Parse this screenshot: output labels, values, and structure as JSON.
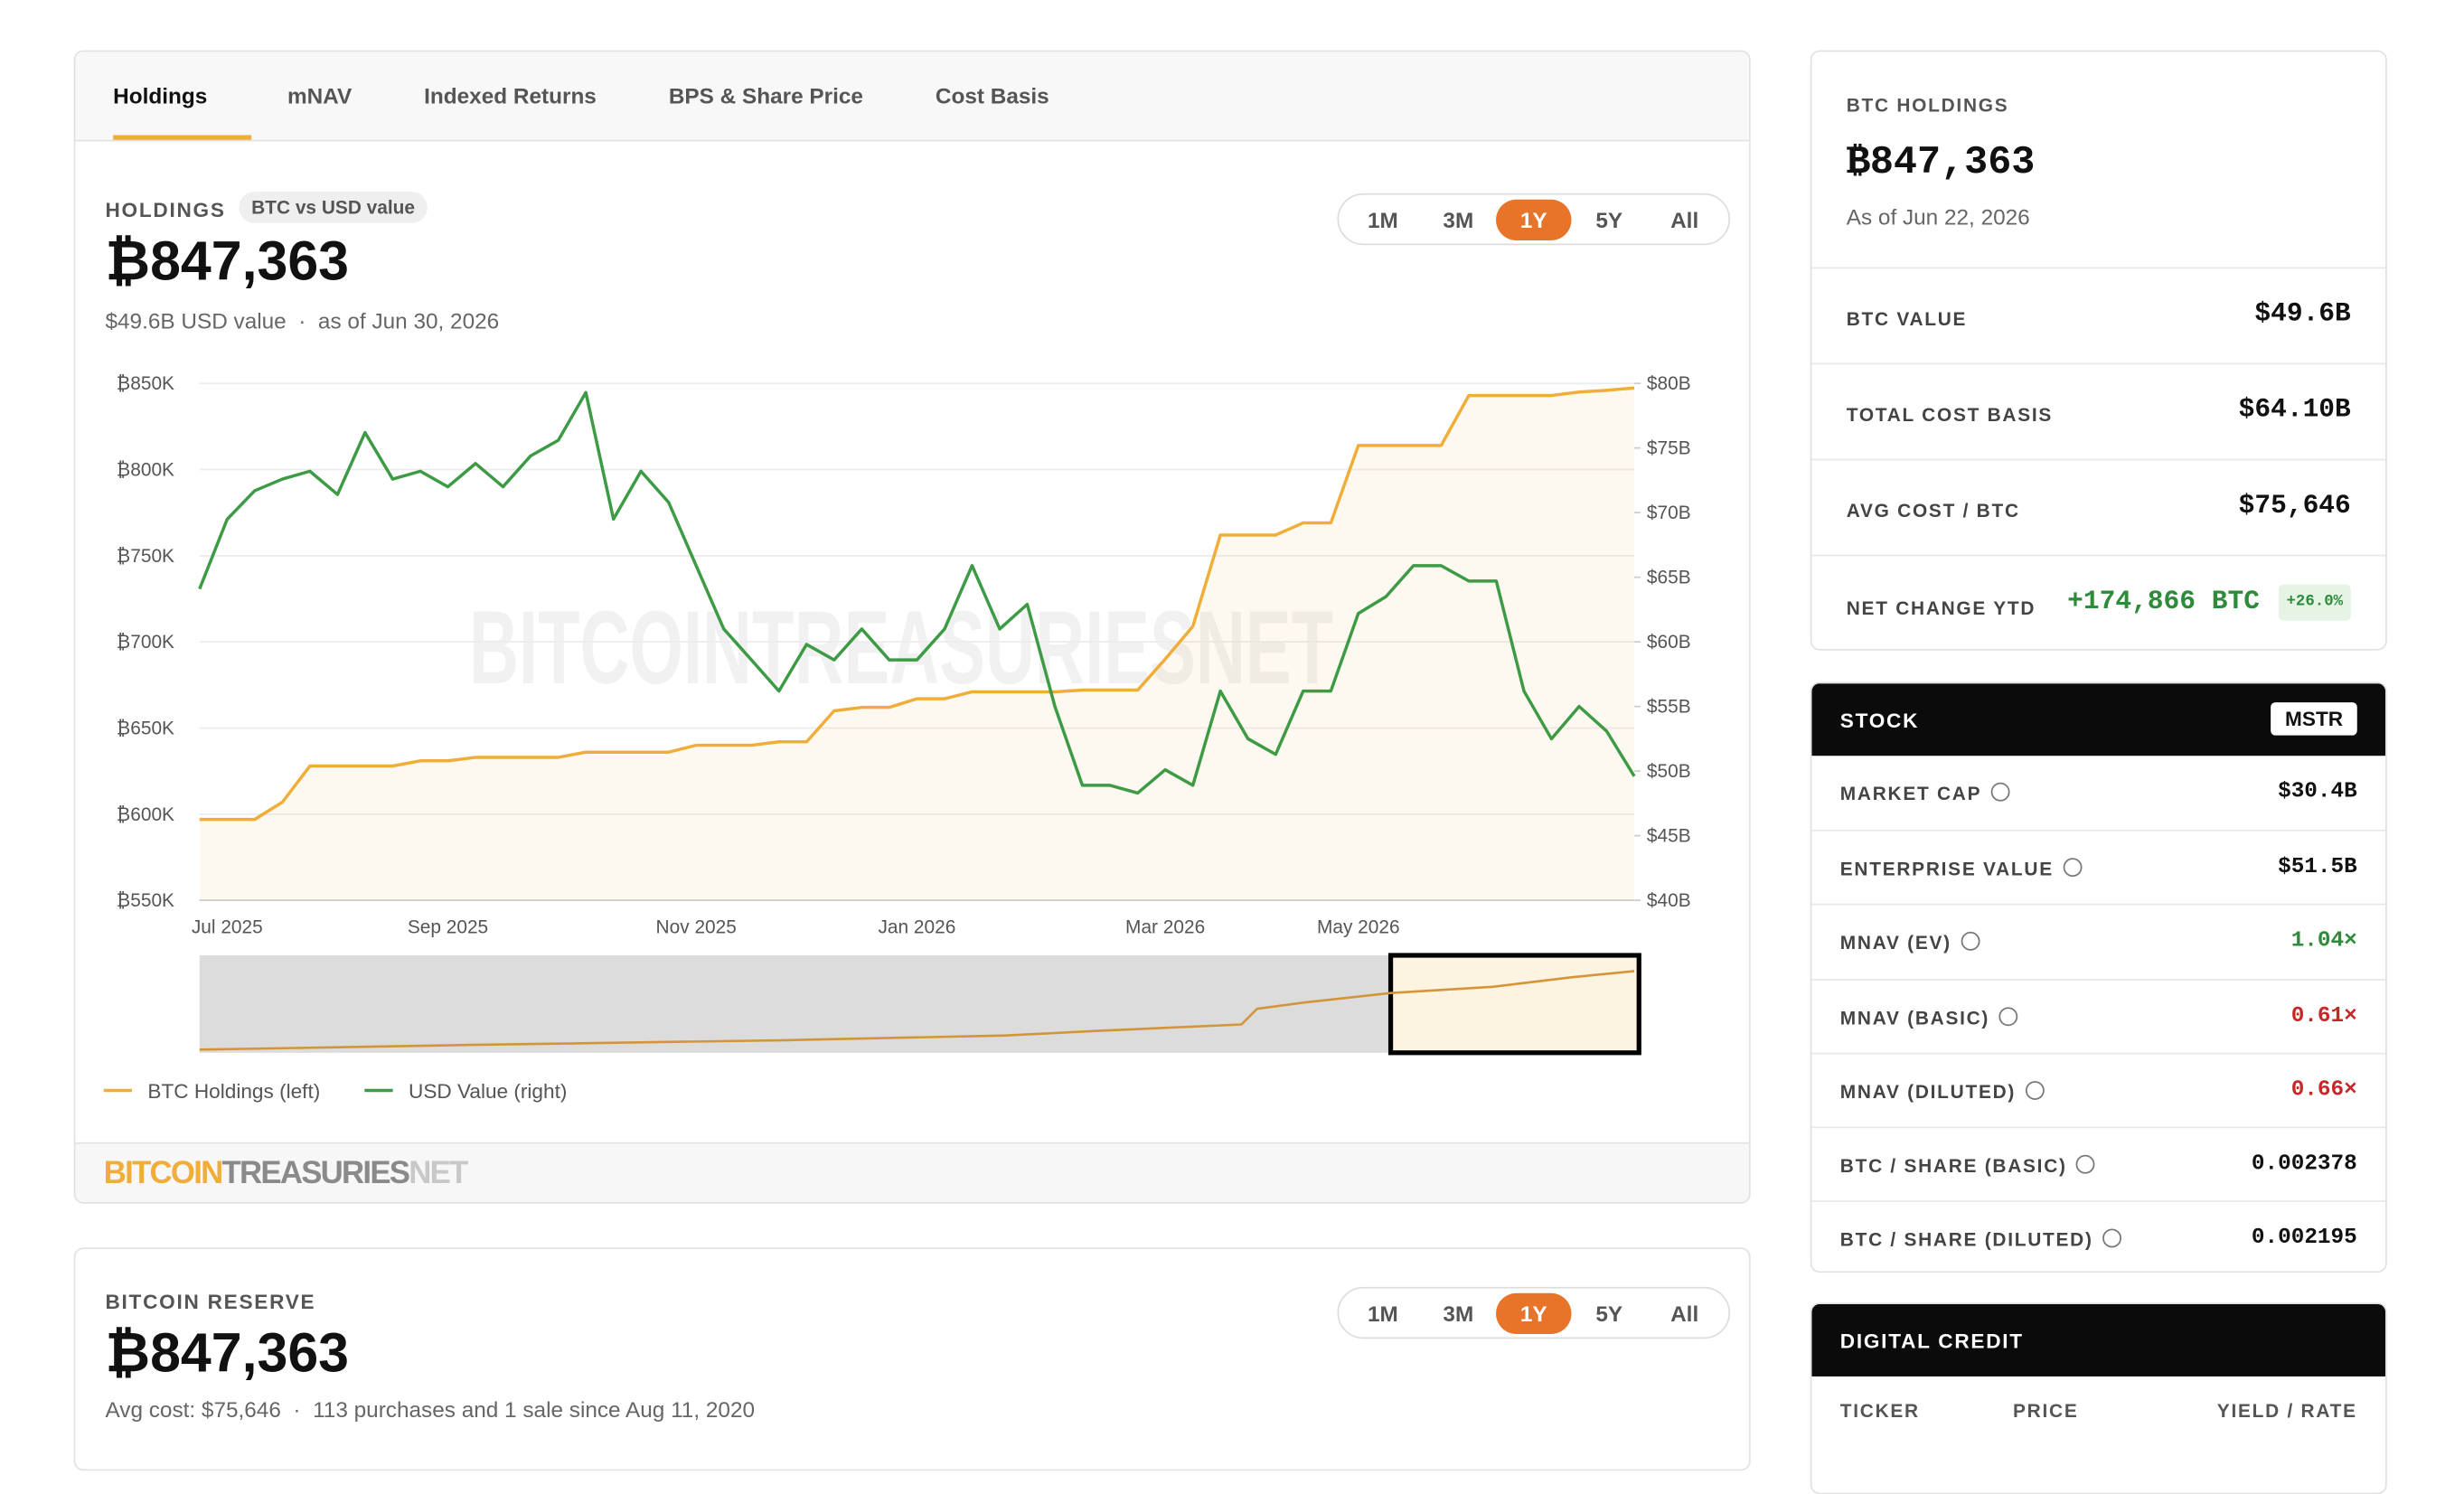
{
  "tabs": [
    "Holdings",
    "mNAV",
    "Indexed Returns",
    "BPS & Share Price",
    "Cost Basis"
  ],
  "holdings_panel": {
    "label": "HOLDINGS",
    "badge": "BTC vs USD value",
    "value": "₿847,363",
    "usd_value": "$49.6B USD value",
    "separator": "·",
    "as_of": "as of Jun 30, 2026",
    "ranges": [
      "1M",
      "3M",
      "1Y",
      "5Y",
      "All"
    ],
    "active_range": 2,
    "watermark": "BITCOINTREASURIESNET",
    "logo": [
      "BITCOIN",
      "TREASURIES",
      "NET"
    ]
  },
  "chart_data": {
    "type": "line",
    "categories": [
      null,
      "Jul 2025",
      null,
      null,
      null,
      null,
      null,
      null,
      null,
      "Sep 2025",
      null,
      null,
      null,
      null,
      null,
      null,
      null,
      null,
      "Nov 2025",
      null,
      null,
      null,
      null,
      null,
      null,
      null,
      "Jan 2026",
      null,
      null,
      null,
      null,
      null,
      null,
      null,
      null,
      "Mar 2026",
      null,
      null,
      null,
      null,
      null,
      null,
      "May 2026",
      null,
      null,
      null,
      null,
      null,
      null,
      null,
      null,
      null,
      null
    ],
    "series": [
      {
        "name": "BTC Holdings (left)",
        "color": "#f0ad3a",
        "axis": "y",
        "values": [
          597000,
          597000,
          597000,
          607000,
          628000,
          628000,
          628000,
          628000,
          631000,
          631000,
          633000,
          633000,
          633000,
          633000,
          636000,
          636000,
          636000,
          636000,
          640000,
          640000,
          640000,
          642000,
          642000,
          660000,
          662000,
          662000,
          667000,
          667000,
          671000,
          671000,
          671000,
          671000,
          672000,
          672000,
          672000,
          690000,
          709000,
          762000,
          762000,
          762000,
          769000,
          769000,
          814000,
          814000,
          814000,
          814000,
          843000,
          843000,
          843000,
          843000,
          845000,
          846000,
          847363
        ]
      },
      {
        "name": "USD Value (right)",
        "color": "#3d9a45",
        "axis": "y2",
        "values": [
          64.1,
          69.5,
          71.7,
          72.6,
          73.2,
          71.4,
          76.2,
          72.6,
          73.2,
          72,
          73.8,
          72,
          74.4,
          75.6,
          79.3,
          69.5,
          73.2,
          70.8,
          65.9,
          61,
          58.6,
          56.2,
          59.8,
          58.6,
          61,
          58.6,
          58.6,
          61,
          65.9,
          61,
          62.9,
          55,
          48.9,
          48.9,
          48.3,
          50.1,
          48.9,
          56.2,
          52.5,
          51.3,
          56.2,
          56.2,
          62.2,
          63.5,
          65.9,
          65.9,
          64.7,
          64.7,
          56.2,
          52.5,
          55,
          53.1,
          49.6
        ]
      }
    ],
    "ylim": [
      550000,
      850000
    ],
    "yticks": [
      {
        "value": 550000,
        "label": "₿550K"
      },
      {
        "value": 600000,
        "label": "₿600K"
      },
      {
        "value": 650000,
        "label": "₿650K"
      },
      {
        "value": 700000,
        "label": "₿700K"
      },
      {
        "value": 750000,
        "label": "₿750K"
      },
      {
        "value": 800000,
        "label": "₿800K"
      },
      {
        "value": 850000,
        "label": "₿850K"
      }
    ],
    "y2lim": [
      40,
      80
    ],
    "y2ticks": [
      {
        "value": 40,
        "label": "$40B"
      },
      {
        "value": 45,
        "label": "$45B"
      },
      {
        "value": 50,
        "label": "$50B"
      },
      {
        "value": 55,
        "label": "$55B"
      },
      {
        "value": 60,
        "label": "$60B"
      },
      {
        "value": 65,
        "label": "$65B"
      },
      {
        "value": 70,
        "label": "$70B"
      },
      {
        "value": 75,
        "label": "$75B"
      },
      {
        "value": 80,
        "label": "$80B"
      }
    ],
    "grid": true,
    "area": true
  },
  "reserve_panel": {
    "label": "BITCOIN RESERVE",
    "value": "₿847,363",
    "avg_cost": "Avg cost: $75,646",
    "separator": "·",
    "purchases": "113 purchases and 1 sale since Aug 11, 2020",
    "ranges": [
      "1M",
      "3M",
      "1Y",
      "5Y",
      "All"
    ],
    "active_range": 2
  },
  "btc_card": {
    "label": "BTC HOLDINGS",
    "value": "₿847,363",
    "as_of": "As of Jun 22, 2026",
    "rows": [
      {
        "label": "BTC VALUE",
        "value": "$49.6B"
      },
      {
        "label": "TOTAL COST BASIS",
        "value": "$64.10B"
      },
      {
        "label": "AVG COST / BTC",
        "value": "$75,646"
      }
    ],
    "net_change": {
      "label": "NET CHANGE YTD",
      "value": "+174,866 BTC",
      "badge": "+26.0%"
    }
  },
  "stock_card": {
    "title": "STOCK",
    "ticker": "MSTR",
    "rows": [
      {
        "label": "MARKET CAP",
        "value": "$30.4B",
        "color": "#111111"
      },
      {
        "label": "ENTERPRISE VALUE",
        "value": "$51.5B",
        "color": "#111111"
      },
      {
        "label": "MNAV (EV)",
        "value": "1.04×",
        "color": "#2e8b3a"
      },
      {
        "label": "MNAV (BASIC)",
        "value": "0.61×",
        "color": "#c62828"
      },
      {
        "label": "MNAV (DILUTED)",
        "value": "0.66×",
        "color": "#c62828"
      },
      {
        "label": "BTC / SHARE (BASIC)",
        "value": "0.002378",
        "color": "#111111"
      },
      {
        "label": "BTC / SHARE (DILUTED)",
        "value": "0.002195",
        "color": "#111111"
      }
    ]
  },
  "credit_card": {
    "title": "DIGITAL CREDIT",
    "columns": [
      "TICKER",
      "PRICE",
      "YIELD / RATE"
    ]
  }
}
